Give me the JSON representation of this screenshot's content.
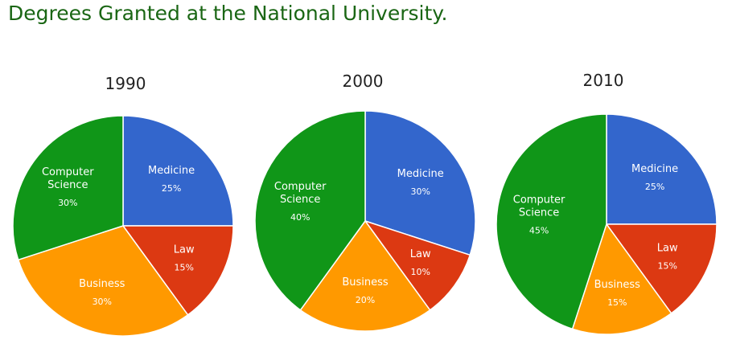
{
  "page": {
    "title": "Degrees Granted at the National University."
  },
  "chart_data": [
    {
      "type": "pie",
      "title": "1990",
      "slices": [
        {
          "label": "Medicine",
          "value": 25,
          "value_label": "25%",
          "color": "#3366cc"
        },
        {
          "label": "Law",
          "value": 15,
          "value_label": "15%",
          "color": "#dc3912"
        },
        {
          "label": "Business",
          "value": 30,
          "value_label": "30%",
          "color": "#ff9900"
        },
        {
          "label": "Computer Science",
          "value": 30,
          "value_label": "30%",
          "color": "#109618"
        }
      ]
    },
    {
      "type": "pie",
      "title": "2000",
      "slices": [
        {
          "label": "Medicine",
          "value": 30,
          "value_label": "30%",
          "color": "#3366cc"
        },
        {
          "label": "Law",
          "value": 10,
          "value_label": "10%",
          "color": "#dc3912"
        },
        {
          "label": "Business",
          "value": 20,
          "value_label": "20%",
          "color": "#ff9900"
        },
        {
          "label": "Computer Science",
          "value": 40,
          "value_label": "40%",
          "color": "#109618"
        }
      ]
    },
    {
      "type": "pie",
      "title": "2010",
      "slices": [
        {
          "label": "Medicine",
          "value": 25,
          "value_label": "25%",
          "color": "#3366cc"
        },
        {
          "label": "Law",
          "value": 15,
          "value_label": "15%",
          "color": "#dc3912"
        },
        {
          "label": "Business",
          "value": 15,
          "value_label": "15%",
          "color": "#ff9900"
        },
        {
          "label": "Computer Science",
          "value": 45,
          "value_label": "45%",
          "color": "#109618"
        }
      ]
    }
  ]
}
